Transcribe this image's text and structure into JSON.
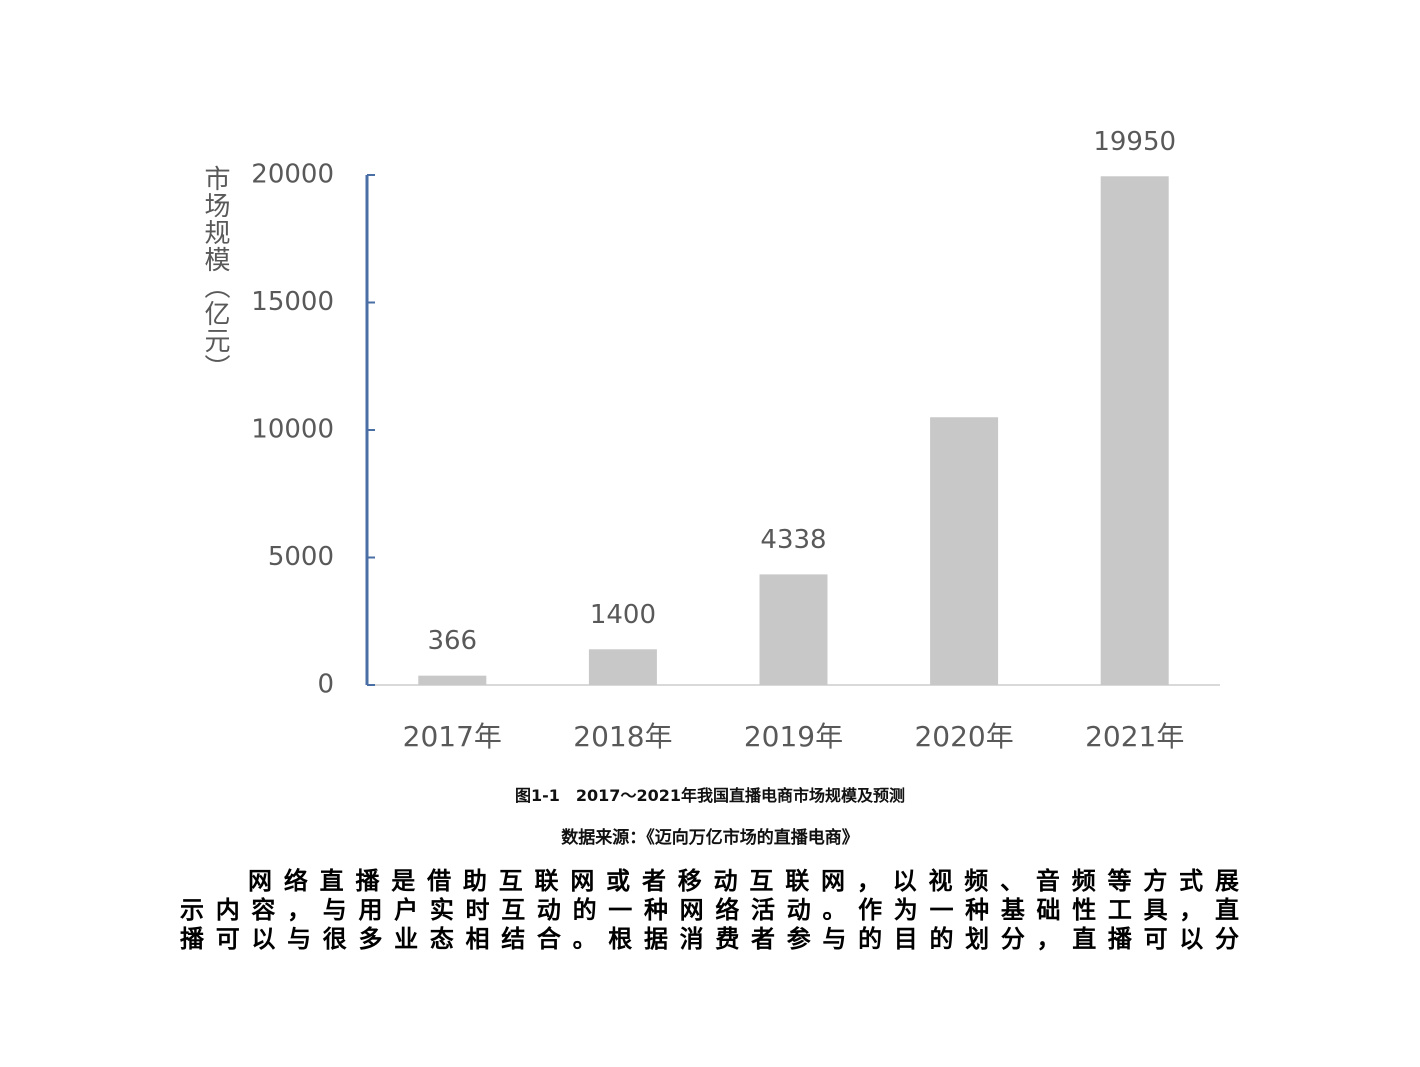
{
  "chart_data": {
    "type": "bar",
    "y_label": "市场规模（亿元）",
    "categories": [
      "2017年",
      "2018年",
      "2019年",
      "2020年",
      "2021年"
    ],
    "values": [
      366,
      1400,
      4338,
      10500,
      19950
    ],
    "value_labels": [
      "366",
      "1400",
      "4338",
      null,
      "19950"
    ],
    "color": "#c8c8c8",
    "ylim": [
      0,
      20000
    ],
    "yticks": [
      0,
      5000,
      10000,
      15000,
      20000
    ],
    "grid": false
  },
  "document": {
    "caption": "图1-1　2017～2021年我国直播电商市场规模及预测",
    "source": "数据来源：《迈向万亿市场的直播电商》",
    "paragraph": [
      "网络直播是借助互联网或者移动互联网，以视频、音频等方式展",
      "示内容，与用户实时互动的一种网络活动。作为一种基础性工具，直",
      "播可以与很多业态相结合。根据消费者参与的目的划分，直播可以分"
    ]
  }
}
